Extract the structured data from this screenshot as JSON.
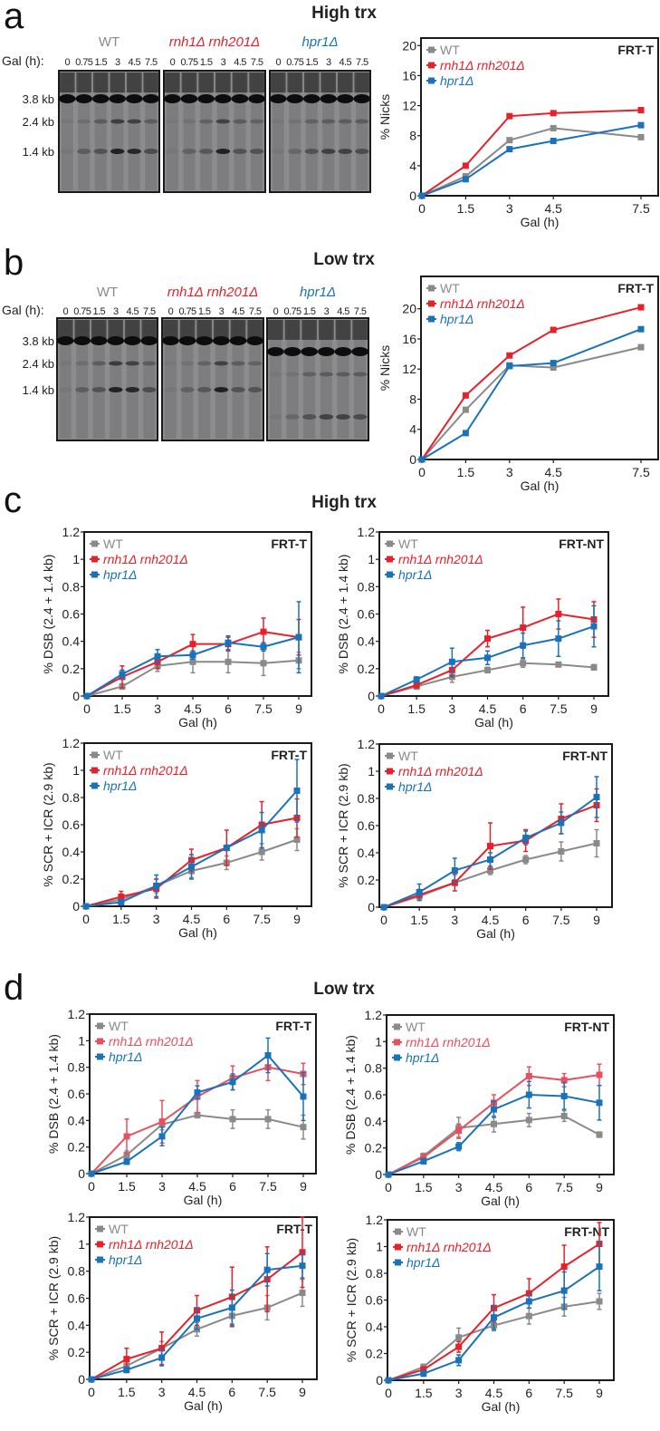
{
  "panels": [
    {
      "letter": "a",
      "title": "High trx"
    },
    {
      "letter": "b",
      "title": "Low trx"
    },
    {
      "letter": "c",
      "title": "High trx"
    },
    {
      "letter": "d",
      "title": "Low trx"
    }
  ],
  "blots": {
    "gal_label": "Gal (h):",
    "lanes": [
      "0",
      "0.75",
      "1.5",
      "3",
      "4.5",
      "7.5"
    ],
    "strains": [
      {
        "name": "WT",
        "color": "#8a8a8a",
        "italic": false
      },
      {
        "name": "rnh1Δ rnh201Δ",
        "color": "#e8202a",
        "italic": true
      },
      {
        "name": "hpr1Δ",
        "color": "#1a72bb",
        "italic": true
      }
    ],
    "size_markers": [
      "3.8 kb",
      "2.4 kb",
      "1.4 kb"
    ]
  },
  "colors": {
    "WT": "#8a8a8a",
    "rnh1Δ rnh201Δ": "#e8202a",
    "hpr1Δ": "#1a72bb"
  },
  "chart_data": [
    {
      "panel": "a",
      "type": "line",
      "annotation": "FRT-T",
      "xlabel": "Gal (h)",
      "ylabel": "% Nicks",
      "x": [
        0,
        1.5,
        3,
        4.5,
        7.5
      ],
      "xticks": [
        "0",
        "1.5",
        "3",
        "4.5",
        "7.5"
      ],
      "yticks": [
        "0",
        "4",
        "8",
        "12",
        "16",
        "20"
      ],
      "ylim": [
        0,
        21
      ],
      "legend": "top-left",
      "series": [
        {
          "name": "WT",
          "color": "#8a8a8a",
          "values": [
            0,
            2.6,
            7.4,
            9.0,
            7.8
          ]
        },
        {
          "name": "rnh1Δ rnh201Δ",
          "color": "#e8202a",
          "values": [
            0,
            4.0,
            10.6,
            11.0,
            11.4
          ]
        },
        {
          "name": "hpr1Δ",
          "color": "#1a72bb",
          "values": [
            0,
            2.2,
            6.2,
            7.3,
            9.4
          ]
        }
      ]
    },
    {
      "panel": "b",
      "type": "line",
      "annotation": "FRT-T",
      "xlabel": "Gal (h)",
      "ylabel": "% Nicks",
      "x": [
        0,
        1.5,
        3,
        4.5,
        7.5
      ],
      "xticks": [
        "0",
        "1.5",
        "3",
        "4.5",
        "7.5"
      ],
      "yticks": [
        "0",
        "4",
        "8",
        "12",
        "16",
        "20"
      ],
      "ylim": [
        0,
        24.3
      ],
      "legend": "top-left",
      "series": [
        {
          "name": "WT",
          "color": "#8a8a8a",
          "values": [
            0,
            6.6,
            12.5,
            12.2,
            14.9
          ]
        },
        {
          "name": "rnh1Δ rnh201Δ",
          "color": "#e8202a",
          "values": [
            0,
            8.5,
            13.8,
            17.2,
            20.2
          ]
        },
        {
          "name": "hpr1Δ",
          "color": "#1a72bb",
          "values": [
            0,
            3.5,
            12.4,
            12.8,
            17.3
          ]
        }
      ]
    },
    {
      "panel": "c",
      "type": "line",
      "annotation": "FRT-T",
      "xlabel": "Gal (h)",
      "ylabel": "% DSB (2.4 + 1.4 kb)",
      "x": [
        0,
        1.5,
        3,
        4.5,
        6,
        7.5,
        9
      ],
      "xticks": [
        "0",
        "1.5",
        "3",
        "4.5",
        "6",
        "7.5",
        "9"
      ],
      "yticks": [
        "0",
        "0.2",
        "0.4",
        "0.6",
        "0.8",
        "1",
        "1.2"
      ],
      "ylim": [
        0,
        1.2
      ],
      "legend": "top-left",
      "series": [
        {
          "name": "WT",
          "color": "#8a8a8a",
          "values": [
            0,
            0.07,
            0.22,
            0.25,
            0.25,
            0.24,
            0.26
          ],
          "errors": [
            0,
            0.02,
            0.04,
            0.08,
            0.08,
            0.09,
            0.06
          ]
        },
        {
          "name": "rnh1Δ rnh201Δ",
          "color": "#e8202a",
          "values": [
            0,
            0.14,
            0.25,
            0.38,
            0.38,
            0.47,
            0.43
          ],
          "errors": [
            0,
            0.08,
            0.05,
            0.07,
            0.05,
            0.1,
            0.13
          ]
        },
        {
          "name": "hpr1Δ",
          "color": "#1a72bb",
          "values": [
            0,
            0.16,
            0.29,
            0.3,
            0.39,
            0.36,
            0.43
          ],
          "errors": [
            0,
            0.03,
            0.05,
            0.03,
            0.05,
            0.03,
            0.26
          ]
        }
      ]
    },
    {
      "panel": "c",
      "type": "line",
      "annotation": "FRT-NT",
      "xlabel": "Gal (h)",
      "ylabel": "% DSB (2.4 + 1.4 kb)",
      "x": [
        0,
        1.5,
        3,
        4.5,
        6,
        7.5,
        9
      ],
      "xticks": [
        "0",
        "1.5",
        "3",
        "4.5",
        "6",
        "7.5",
        "9"
      ],
      "yticks": [
        "0",
        "0.2",
        "0.4",
        "0.6",
        "0.8",
        "1",
        "1.2"
      ],
      "ylim": [
        0,
        1.2
      ],
      "legend": "top-left",
      "series": [
        {
          "name": "WT",
          "color": "#8a8a8a",
          "values": [
            0,
            0.07,
            0.14,
            0.19,
            0.24,
            0.23,
            0.21
          ],
          "errors": [
            0,
            0.02,
            0.04,
            0.02,
            0.03,
            0.01,
            0.02
          ]
        },
        {
          "name": "rnh1Δ rnh201Δ",
          "color": "#e8202a",
          "values": [
            0,
            0.08,
            0.19,
            0.42,
            0.5,
            0.6,
            0.56
          ],
          "errors": [
            0,
            0.02,
            0.05,
            0.06,
            0.15,
            0.11,
            0.13
          ]
        },
        {
          "name": "hpr1Δ",
          "color": "#1a72bb",
          "values": [
            0,
            0.12,
            0.25,
            0.28,
            0.37,
            0.42,
            0.51
          ],
          "errors": [
            0,
            0.02,
            0.1,
            0.05,
            0.09,
            0.13,
            0.15
          ]
        }
      ]
    },
    {
      "panel": "c",
      "type": "line",
      "annotation": "FRT-T",
      "xlabel": "Gal (h)",
      "ylabel": "% SCR + ICR (2.9 kb)",
      "x": [
        0,
        1.5,
        3,
        4.5,
        6,
        7.5,
        9
      ],
      "xticks": [
        "0",
        "1.5",
        "3",
        "4.5",
        "6",
        "7.5",
        "9"
      ],
      "yticks": [
        "0",
        "0.2",
        "0.4",
        "0.6",
        "0.8",
        "1",
        "1.2"
      ],
      "ylim": [
        0,
        1.2
      ],
      "legend": "top-left",
      "series": [
        {
          "name": "WT",
          "color": "#8a8a8a",
          "values": [
            0,
            0.05,
            0.15,
            0.26,
            0.32,
            0.4,
            0.49
          ],
          "errors": [
            0,
            0.03,
            0.05,
            0.05,
            0.05,
            0.06,
            0.08
          ]
        },
        {
          "name": "rnh1Δ rnh201Δ",
          "color": "#e8202a",
          "values": [
            0,
            0.07,
            0.13,
            0.34,
            0.43,
            0.6,
            0.65
          ],
          "errors": [
            0,
            0.04,
            0.07,
            0.08,
            0.13,
            0.17,
            0.14
          ]
        },
        {
          "name": "hpr1Δ",
          "color": "#1a72bb",
          "values": [
            0,
            0.03,
            0.15,
            0.29,
            0.43,
            0.56,
            0.85
          ],
          "errors": [
            0,
            0.02,
            0.08,
            0.09,
            0.02,
            0.13,
            0.23
          ]
        }
      ]
    },
    {
      "panel": "c",
      "type": "line",
      "annotation": "FRT-NT",
      "xlabel": "Gal (h)",
      "ylabel": "% SCR + ICR (2.9 kb)",
      "x": [
        0,
        1.5,
        3,
        4.5,
        6,
        7.5,
        9
      ],
      "xticks": [
        "0",
        "1.5",
        "3",
        "4.5",
        "6",
        "7.5",
        "9"
      ],
      "yticks": [
        "0",
        "0.2",
        "0.4",
        "0.6",
        "0.8",
        "1",
        "1.2"
      ],
      "ylim": [
        0,
        1.2
      ],
      "legend": "top-left",
      "series": [
        {
          "name": "WT",
          "color": "#8a8a8a",
          "values": [
            0,
            0.08,
            0.18,
            0.27,
            0.35,
            0.41,
            0.47
          ],
          "errors": [
            0,
            0.02,
            0.02,
            0.03,
            0.03,
            0.07,
            0.1
          ]
        },
        {
          "name": "rnh1Δ rnh201Δ",
          "color": "#e8202a",
          "values": [
            0,
            0.09,
            0.18,
            0.45,
            0.49,
            0.65,
            0.75
          ],
          "errors": [
            0,
            0.04,
            0.06,
            0.17,
            0.08,
            0.11,
            0.12
          ]
        },
        {
          "name": "hpr1Δ",
          "color": "#1a72bb",
          "values": [
            0,
            0.11,
            0.27,
            0.35,
            0.51,
            0.62,
            0.81
          ],
          "errors": [
            0,
            0.06,
            0.09,
            0.05,
            0.05,
            0.08,
            0.15
          ]
        }
      ]
    },
    {
      "panel": "d",
      "type": "line",
      "annotation": "FRT-T",
      "xlabel": "Gal (h)",
      "ylabel": "% DSB (2.4 + 1.4 kb)",
      "x": [
        0,
        1.5,
        3,
        4.5,
        6,
        7.5,
        9
      ],
      "xticks": [
        "0",
        "1.5",
        "3",
        "4.5",
        "6",
        "7.5",
        "9"
      ],
      "yticks": [
        "0",
        "0.2",
        "0.4",
        "0.6",
        "0.8",
        "1",
        "1.2"
      ],
      "ylim": [
        0,
        1.2
      ],
      "legend": "top-left",
      "series": [
        {
          "name": "WT",
          "color": "#8a8a8a",
          "values": [
            0,
            0.14,
            0.37,
            0.44,
            0.41,
            0.41,
            0.35
          ],
          "errors": [
            0,
            0.03,
            0.04,
            0.02,
            0.07,
            0.07,
            0.09
          ]
        },
        {
          "name": "rnh1Δ rnh201Δ",
          "color": "#e8505f",
          "values": [
            0,
            0.28,
            0.39,
            0.58,
            0.72,
            0.8,
            0.75
          ],
          "errors": [
            0,
            0.13,
            0.16,
            0.12,
            0.09,
            0.1,
            0.08
          ]
        },
        {
          "name": "hpr1Δ",
          "color": "#1a72bb",
          "values": [
            0,
            0.09,
            0.28,
            0.61,
            0.69,
            0.89,
            0.58
          ],
          "errors": [
            0,
            0.02,
            0.07,
            0.05,
            0.06,
            0.13,
            0.18
          ]
        }
      ]
    },
    {
      "panel": "d",
      "type": "line",
      "annotation": "FRT-NT",
      "xlabel": "Gal (h)",
      "ylabel": "% DSB (2.4 + 1.4 kb)",
      "x": [
        0,
        1.5,
        3,
        4.5,
        6,
        7.5,
        9
      ],
      "xticks": [
        "0",
        "1.5",
        "3",
        "4.5",
        "6",
        "7.5",
        "9"
      ],
      "yticks": [
        "0",
        "0.2",
        "0.4",
        "0.6",
        "0.8",
        "1",
        "1.2"
      ],
      "ylim": [
        0,
        1.2
      ],
      "legend": "top-left",
      "series": [
        {
          "name": "WT",
          "color": "#8a8a8a",
          "values": [
            0,
            0.14,
            0.35,
            0.38,
            0.41,
            0.44,
            0.3
          ],
          "errors": [
            0,
            0.02,
            0.08,
            0.06,
            0.05,
            0.04,
            0.02
          ]
        },
        {
          "name": "rnh1Δ rnh201Δ",
          "color": "#e8505f",
          "values": [
            0,
            0.13,
            0.33,
            0.54,
            0.74,
            0.71,
            0.75
          ],
          "errors": [
            0,
            0.02,
            0.05,
            0.06,
            0.07,
            0.05,
            0.08
          ]
        },
        {
          "name": "hpr1Δ",
          "color": "#1a72bb",
          "values": [
            0,
            0.1,
            0.21,
            0.49,
            0.6,
            0.59,
            0.54
          ],
          "errors": [
            0,
            0.02,
            0.03,
            0.06,
            0.1,
            0.1,
            0.13
          ]
        }
      ]
    },
    {
      "panel": "d",
      "type": "line",
      "annotation": "FRT-T",
      "xlabel": "Gal (h)",
      "ylabel": "% SCR + ICR (2.9 kb)",
      "x": [
        0,
        1.5,
        3,
        4.5,
        6,
        7.5,
        9
      ],
      "xticks": [
        "0",
        "1.5",
        "3",
        "4.5",
        "6",
        "7.5",
        "9"
      ],
      "yticks": [
        "0",
        "0.2",
        "0.4",
        "0.6",
        "0.8",
        "1",
        "1.2"
      ],
      "ylim": [
        0,
        1.2
      ],
      "legend": "top-left",
      "series": [
        {
          "name": "WT",
          "color": "#8a8a8a",
          "values": [
            0,
            0.1,
            0.23,
            0.37,
            0.47,
            0.53,
            0.64
          ],
          "errors": [
            0,
            0.03,
            0.05,
            0.05,
            0.06,
            0.09,
            0.1
          ]
        },
        {
          "name": "rnh1Δ rnh201Δ",
          "color": "#e8202a",
          "values": [
            0,
            0.15,
            0.23,
            0.51,
            0.61,
            0.74,
            0.94
          ],
          "errors": [
            0,
            0.08,
            0.12,
            0.11,
            0.22,
            0.24,
            0.26
          ]
        },
        {
          "name": "hpr1Δ",
          "color": "#1a72bb",
          "values": [
            0,
            0.07,
            0.16,
            0.45,
            0.53,
            0.81,
            0.84
          ],
          "errors": [
            0,
            0.02,
            0.06,
            0.08,
            0.13,
            0.12,
            0.09
          ]
        }
      ]
    },
    {
      "panel": "d",
      "type": "line",
      "annotation": "FRT-NT",
      "xlabel": "Gal (h)",
      "ylabel": "% SCR + ICR (2.9 kb)",
      "x": [
        0,
        1.5,
        3,
        4.5,
        6,
        7.5,
        9
      ],
      "xticks": [
        "0",
        "1.5",
        "3",
        "4.5",
        "6",
        "7.5",
        "9"
      ],
      "yticks": [
        "0",
        "0.2",
        "0.4",
        "0.6",
        "0.8",
        "1",
        "1.2"
      ],
      "ylim": [
        0,
        1.2
      ],
      "legend": "top-left",
      "series": [
        {
          "name": "WT",
          "color": "#8a8a8a",
          "values": [
            0,
            0.1,
            0.32,
            0.41,
            0.48,
            0.55,
            0.59
          ],
          "errors": [
            0,
            0.02,
            0.07,
            0.04,
            0.06,
            0.07,
            0.06
          ]
        },
        {
          "name": "rnh1Δ rnh201Δ",
          "color": "#e8202a",
          "values": [
            0,
            0.08,
            0.25,
            0.54,
            0.65,
            0.85,
            1.02
          ],
          "errors": [
            0,
            0.02,
            0.04,
            0.1,
            0.11,
            0.16,
            0.16
          ]
        },
        {
          "name": "hpr1Δ",
          "color": "#1a72bb",
          "values": [
            0,
            0.05,
            0.15,
            0.47,
            0.59,
            0.67,
            0.85
          ],
          "errors": [
            0,
            0.02,
            0.04,
            0.09,
            0.05,
            0.14,
            0.18
          ]
        }
      ]
    }
  ]
}
